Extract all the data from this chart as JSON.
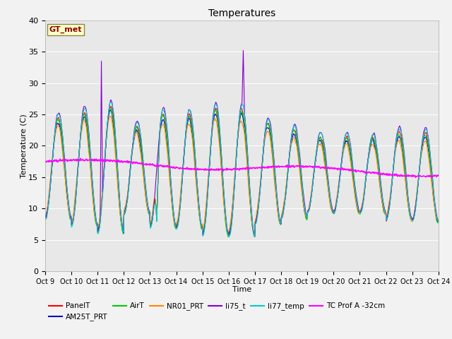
{
  "title": "Temperatures",
  "xlabel": "Time",
  "ylabel": "Temperature (C)",
  "ylim": [
    0,
    40
  ],
  "background_color": "#f2f2f2",
  "plot_bg_color": "#e8e8e8",
  "gt_met_label": "GT_met",
  "series_colors": {
    "PanelT": "#ff0000",
    "AM25T_PRT": "#0000cc",
    "AirT": "#00cc00",
    "NR01_PRT": "#ff8800",
    "li75_t": "#8800cc",
    "li77_temp": "#00cccc",
    "TC Prof A -32cm": "#ff00ff"
  },
  "xtick_labels": [
    "Oct 9",
    "Oct 10",
    "Oct 11",
    "Oct 12",
    "Oct 13",
    "Oct 14",
    "Oct 15",
    "Oct 16",
    "Oct 17",
    "Oct 18",
    "Oct 19",
    "Oct 20",
    "Oct 21",
    "Oct 22",
    "Oct 23",
    "Oct 24"
  ]
}
